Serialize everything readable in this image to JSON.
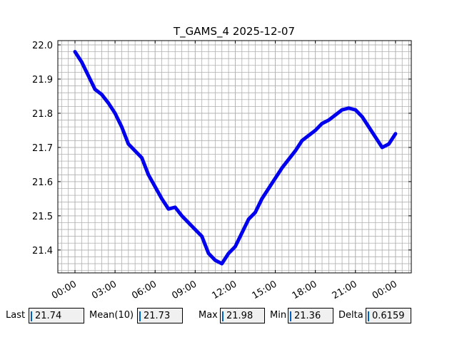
{
  "chart_data": {
    "type": "line",
    "title": "T_GAMS_4 2025-12-07",
    "x": [
      "2025-12-07T00:00",
      "2025-12-07T00:30",
      "2025-12-07T01:00",
      "2025-12-07T01:30",
      "2025-12-07T02:00",
      "2025-12-07T02:30",
      "2025-12-07T03:00",
      "2025-12-07T03:30",
      "2025-12-07T04:00",
      "2025-12-07T04:30",
      "2025-12-07T05:00",
      "2025-12-07T05:30",
      "2025-12-07T06:00",
      "2025-12-07T06:30",
      "2025-12-07T07:00",
      "2025-12-07T07:30",
      "2025-12-07T08:00",
      "2025-12-07T08:30",
      "2025-12-07T09:00",
      "2025-12-07T09:30",
      "2025-12-07T10:00",
      "2025-12-07T10:30",
      "2025-12-07T11:00",
      "2025-12-07T11:30",
      "2025-12-07T12:00",
      "2025-12-07T12:30",
      "2025-12-07T13:00",
      "2025-12-07T13:30",
      "2025-12-07T14:00",
      "2025-12-07T14:30",
      "2025-12-07T15:00",
      "2025-12-07T15:30",
      "2025-12-07T16:00",
      "2025-12-07T16:30",
      "2025-12-07T17:00",
      "2025-12-07T17:30",
      "2025-12-07T18:00",
      "2025-12-07T18:30",
      "2025-12-07T19:00",
      "2025-12-07T19:30",
      "2025-12-07T20:00",
      "2025-12-07T20:30",
      "2025-12-07T21:00",
      "2025-12-07T21:30",
      "2025-12-07T22:00",
      "2025-12-07T22:30",
      "2025-12-07T23:00",
      "2025-12-07T23:30",
      "2025-12-08T00:00"
    ],
    "series": [
      {
        "color": "#0000ee",
        "values": [
          21.98,
          21.95,
          21.91,
          21.87,
          21.855,
          21.83,
          21.8,
          21.76,
          21.71,
          21.69,
          21.67,
          21.62,
          21.585,
          21.55,
          21.52,
          21.525,
          21.5,
          21.48,
          21.46,
          21.44,
          21.39,
          21.37,
          21.36,
          21.39,
          21.41,
          21.45,
          21.49,
          21.51,
          21.55,
          21.58,
          21.61,
          21.64,
          21.665,
          21.69,
          21.72,
          21.735,
          21.75,
          21.77,
          21.78,
          21.795,
          21.81,
          21.815,
          21.81,
          21.79,
          21.76,
          21.73,
          21.7,
          21.71,
          21.74
        ]
      }
    ],
    "xlim": [
      "2025-12-06T22:43",
      "2025-12-08T01:11"
    ],
    "xticks": [
      {
        "value": "2025-12-07T00:00",
        "label": "00:00"
      },
      {
        "value": "2025-12-07T03:00",
        "label": "03:00"
      },
      {
        "value": "2025-12-07T06:00",
        "label": "06:00"
      },
      {
        "value": "2025-12-07T09:00",
        "label": "09:00"
      },
      {
        "value": "2025-12-07T12:00",
        "label": "12:00"
      },
      {
        "value": "2025-12-07T15:00",
        "label": "15:00"
      },
      {
        "value": "2025-12-07T18:00",
        "label": "18:00"
      },
      {
        "value": "2025-12-07T21:00",
        "label": "21:00"
      },
      {
        "value": "2025-12-08T00:00",
        "label": "00:00"
      }
    ],
    "ylim": [
      21.333,
      22.0125
    ],
    "yticks": [
      21.4,
      21.5,
      21.6,
      21.7,
      21.8,
      21.9,
      {
        "value": 22.0,
        "label": "22.0"
      }
    ],
    "grid": true,
    "minor_grid": true
  },
  "stats": [
    {
      "label": "Last",
      "value": 21.74
    },
    {
      "label": "Mean(10)",
      "value": 21.73
    },
    {
      "label": "Max",
      "value": 21.98
    },
    {
      "label": "Min",
      "value": 21.36
    },
    {
      "label": "Delta",
      "value": 0.6159
    }
  ]
}
